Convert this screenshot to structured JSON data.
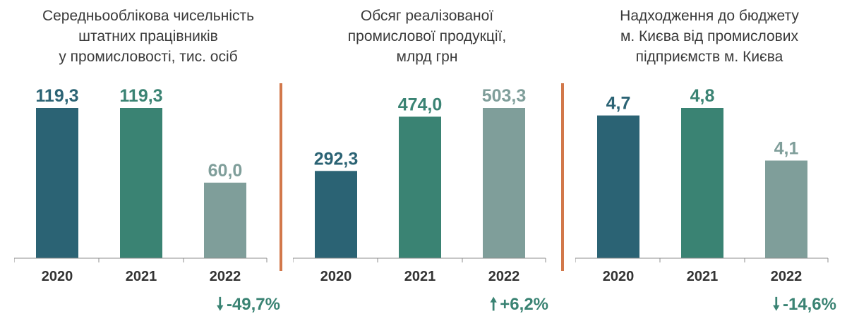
{
  "colors": {
    "year_2020": "#2b6374",
    "year_2021": "#3a8373",
    "year_2022": "#7f9e9a",
    "divider": "#d2784a",
    "axis": "#8c8c8c",
    "tick_text": "#333333",
    "change": "#3a8373"
  },
  "chart_data": [
    {
      "type": "bar",
      "title": "Середньооблікова чисельність\nштатних працівників\nу промисловості, тис. осіб",
      "categories": [
        "2020",
        "2021",
        "2022"
      ],
      "values": [
        119.3,
        119.3,
        60.0
      ],
      "value_labels": [
        "119,3",
        "119,3",
        "60,0"
      ],
      "ylim": [
        0,
        119.3
      ],
      "grid": false,
      "change": {
        "direction": "down",
        "arrow_icon": "arrow-down-icon",
        "label": "-49,7%"
      }
    },
    {
      "type": "bar",
      "title": "Обсяг реалізованої\nпромислової продукції,\nмлрд грн",
      "categories": [
        "2020",
        "2021",
        "2022"
      ],
      "values": [
        292.3,
        474.0,
        503.3
      ],
      "value_labels": [
        "292,3",
        "474,0",
        "503,3"
      ],
      "ylim": [
        0,
        503.3
      ],
      "grid": false,
      "change": {
        "direction": "up",
        "arrow_icon": "arrow-up-icon",
        "label": "+6,2%"
      }
    },
    {
      "type": "bar",
      "title": "Надходження до бюджету\nм. Києва від промислових\nпідприємств м. Києва",
      "categories": [
        "2020",
        "2021",
        "2022"
      ],
      "values": [
        4.7,
        4.8,
        4.1
      ],
      "value_labels": [
        "4,7",
        "4,8",
        "4,1"
      ],
      "ylim": [
        2.8,
        4.8
      ],
      "grid": false,
      "change": {
        "direction": "down",
        "arrow_icon": "arrow-down-icon",
        "label": "-14,6%"
      }
    }
  ]
}
